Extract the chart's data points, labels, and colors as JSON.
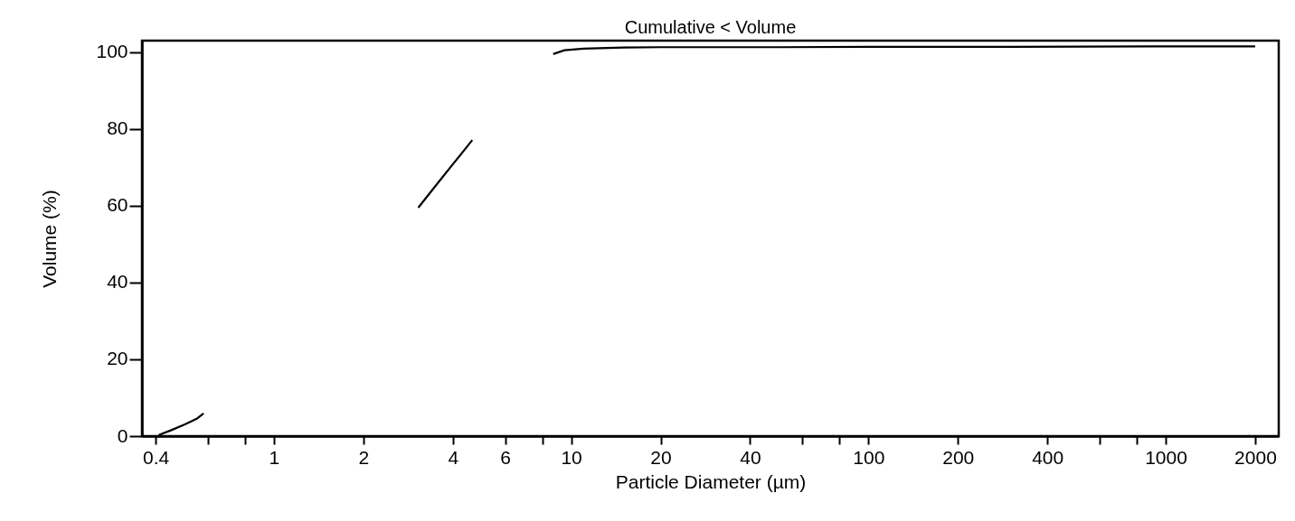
{
  "chart_data": {
    "type": "line",
    "title": "Cumulative < Volume",
    "xlabel": "Particle Diameter (µm)",
    "ylabel": "Volume (%)",
    "log": "x",
    "grid": false,
    "marker": "none",
    "line_style": "solid",
    "x": [
      0.41,
      0.45,
      0.5,
      0.55,
      0.58,
      1.5,
      3.06,
      3.5,
      4,
      4.65,
      6,
      8.7,
      9.5,
      11,
      15,
      20,
      50,
      100,
      300,
      1000,
      2000
    ],
    "series": [
      {
        "color": "#000000",
        "values": [
          0.3,
          1.5,
          3,
          4.5,
          5.9,
          null,
          59.5,
          65.2,
          70.8,
          77.1,
          null,
          99.5,
          100.5,
          100.9,
          101.2,
          101.3,
          101.3,
          101.4,
          101.4,
          101.5,
          101.5
        ]
      }
    ],
    "xlim": [
      0.36,
      2400
    ],
    "ylim": [
      0,
      103
    ],
    "xticks": [
      0.4,
      {
        "value": 0.6,
        "label": null
      },
      {
        "value": 0.8,
        "label": null
      },
      1,
      2,
      4,
      6,
      {
        "value": 8,
        "label": null
      },
      10,
      20,
      40,
      {
        "value": 60,
        "label": null
      },
      {
        "value": 80,
        "label": null
      },
      100,
      200,
      400,
      {
        "value": 600,
        "label": null
      },
      {
        "value": 800,
        "label": null
      },
      1000,
      2000
    ],
    "yticks": [
      0,
      20,
      40,
      60,
      80,
      100
    ]
  }
}
